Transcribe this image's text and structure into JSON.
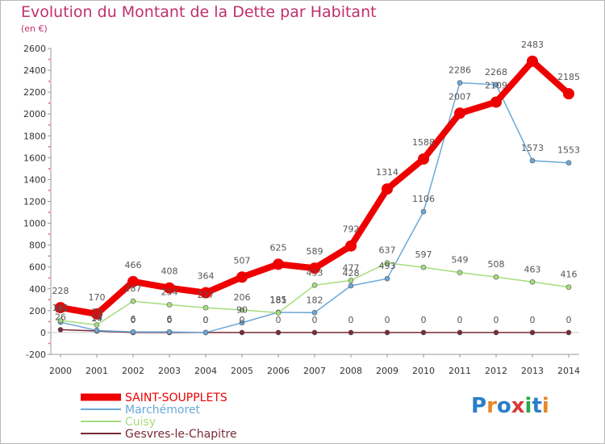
{
  "title": "Evolution du Montant de la Dette par Habitant",
  "unit": "(en €)",
  "logo": "Proxiti",
  "chart_data": {
    "type": "line",
    "x": [
      "2000",
      "2001",
      "2002",
      "2003",
      "2004",
      "2005",
      "2006",
      "2007",
      "2008",
      "2009",
      "2010",
      "2011",
      "2012",
      "2013",
      "2014"
    ],
    "ylim": [
      -200,
      2600
    ],
    "yticks": [
      -200,
      0,
      200,
      400,
      600,
      800,
      1000,
      1200,
      1400,
      1600,
      1800,
      2000,
      2200,
      2400,
      2600
    ],
    "grid": false,
    "legend_position": "bottom-left",
    "series": [
      {
        "name": "SAINT-SOUPPLETS",
        "color": "#ee0000",
        "values": [
          228,
          170,
          466,
          408,
          364,
          507,
          625,
          589,
          792,
          1314,
          1588,
          2007,
          2109,
          2483,
          2185
        ]
      },
      {
        "name": "Marchémoret",
        "color": "#6aa8d8",
        "values": [
          95,
          19,
          6,
          6,
          0,
          90,
          185,
          182,
          428,
          493,
          1106,
          2286,
          2268,
          1573,
          1553
        ]
      },
      {
        "name": "Cuisy",
        "color": "#a6dd7c",
        "values": [
          111,
          70,
          287,
          254,
          227,
          206,
          181,
          433,
          477,
          637,
          597,
          549,
          508,
          463,
          416
        ]
      },
      {
        "name": "Gesvres-le-Chapitre",
        "color": "#7a2a38",
        "values": [
          26,
          14,
          0,
          0,
          0,
          0,
          0,
          0,
          0,
          0,
          0,
          0,
          0,
          0,
          0
        ]
      }
    ]
  }
}
